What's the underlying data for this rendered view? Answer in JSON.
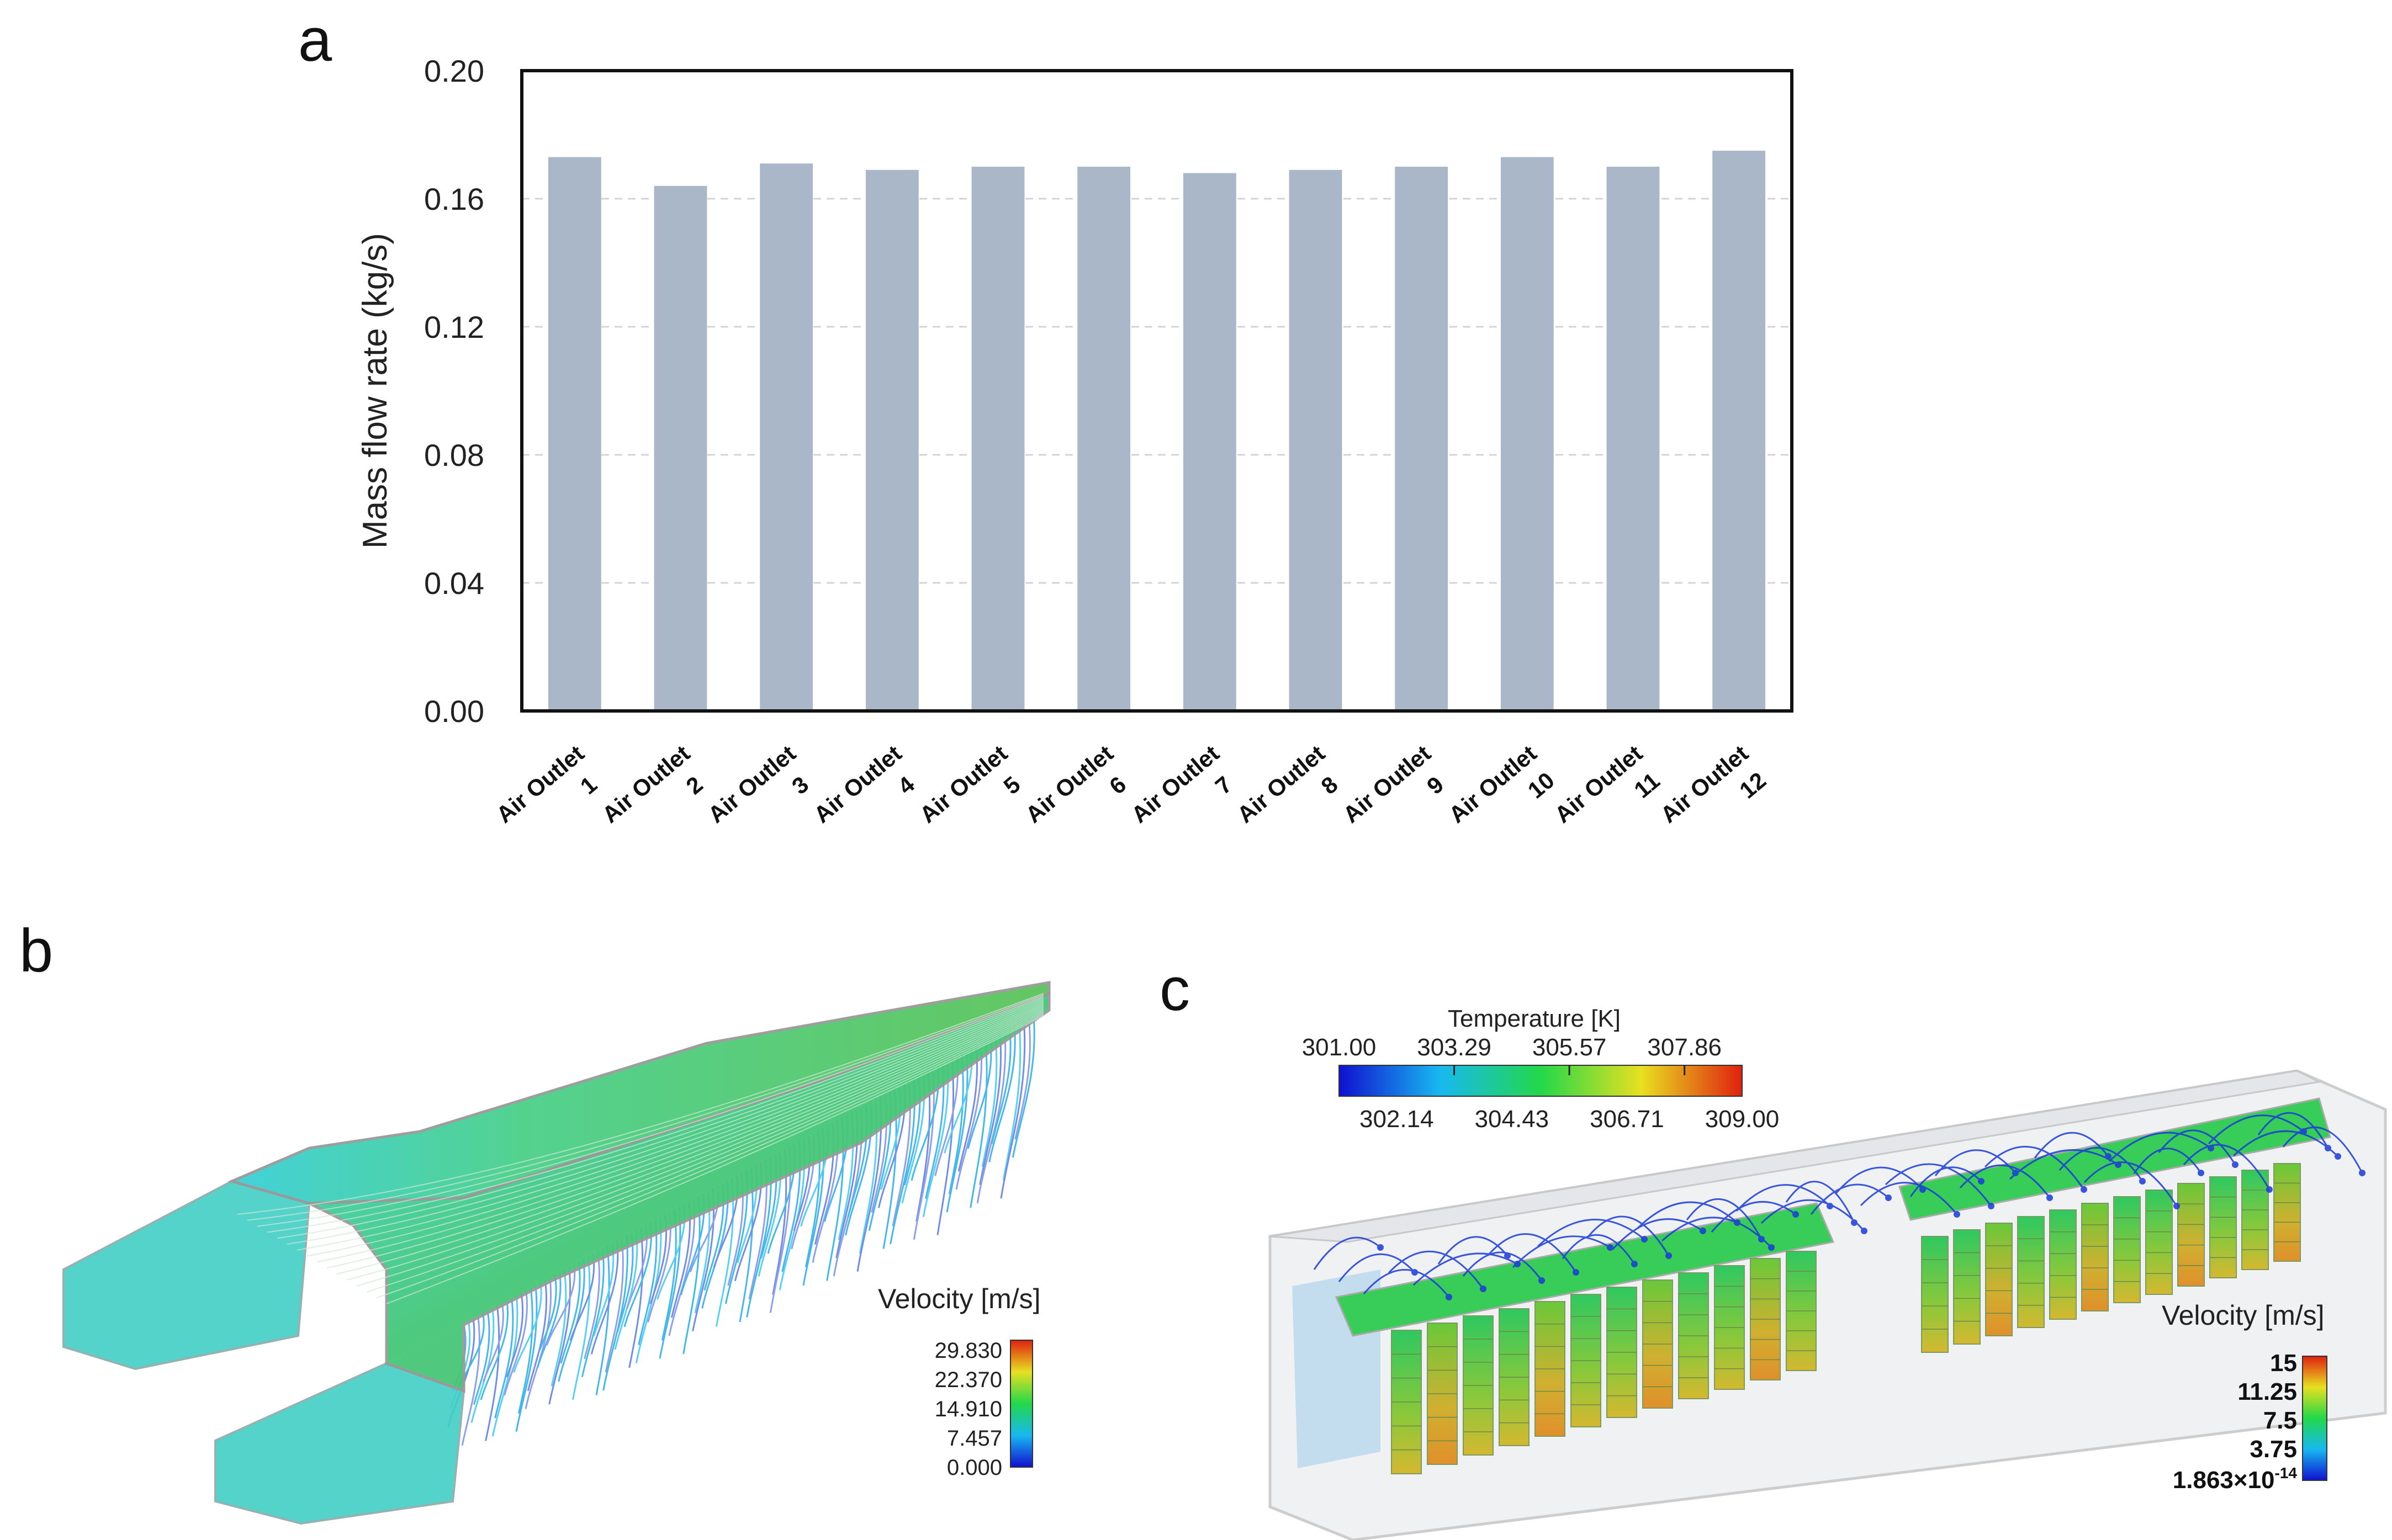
{
  "panels": {
    "a": "a",
    "b": "b",
    "c": "c"
  },
  "chart_data": {
    "type": "bar",
    "ylabel": "Mass flow rate  (kg/s)",
    "xlabel": "",
    "ylim": [
      0,
      0.2
    ],
    "yticks": [
      "0.00",
      "0.04",
      "0.08",
      "0.12",
      "0.16",
      "0.20"
    ],
    "categories": [
      {
        "line1": "Air Outlet",
        "line2": "1"
      },
      {
        "line1": "Air Outlet",
        "line2": "2"
      },
      {
        "line1": "Air Outlet",
        "line2": "3"
      },
      {
        "line1": "Air Outlet",
        "line2": "4"
      },
      {
        "line1": "Air Outlet",
        "line2": "5"
      },
      {
        "line1": "Air Outlet",
        "line2": "6"
      },
      {
        "line1": "Air Outlet",
        "line2": "7"
      },
      {
        "line1": "Air Outlet",
        "line2": "8"
      },
      {
        "line1": "Air Outlet",
        "line2": "9"
      },
      {
        "line1": "Air Outlet",
        "line2": "10"
      },
      {
        "line1": "Air Outlet",
        "line2": "11"
      },
      {
        "line1": "Air Outlet",
        "line2": "12"
      }
    ],
    "values": [
      0.173,
      0.164,
      0.171,
      0.169,
      0.17,
      0.17,
      0.168,
      0.169,
      0.17,
      0.173,
      0.17,
      0.175
    ],
    "bar_color": "#a9b7c9",
    "grid": true
  },
  "panel_b": {
    "legend_title": "Velocity [m/s]",
    "legend_values": [
      "29.830",
      "22.370",
      "14.910",
      "7.457",
      "0.000"
    ]
  },
  "panel_c": {
    "temperature_title": "Temperature [K]",
    "temperature_top": [
      "301.00",
      "303.29",
      "305.57",
      "307.86"
    ],
    "temperature_bottom": [
      "302.14",
      "304.43",
      "306.71",
      "309.00"
    ],
    "velocity_title": "Velocity [m/s]",
    "velocity_values": [
      "15",
      "11.25",
      "7.5",
      "3.75"
    ],
    "velocity_min": "1.863×10",
    "velocity_min_exp": "-14"
  }
}
